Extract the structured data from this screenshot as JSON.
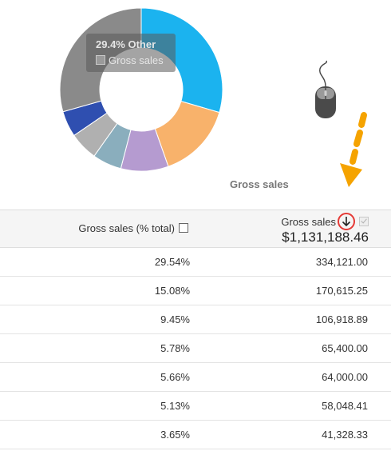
{
  "chart": {
    "label": "Gross sales",
    "tooltip": {
      "title": "29.4% Other",
      "series_label": "Gross sales"
    }
  },
  "chart_data": {
    "type": "pie",
    "donut": true,
    "title": "Gross sales",
    "slices": [
      {
        "value": 29.54,
        "color": "#1bb3ef"
      },
      {
        "value": 15.08,
        "color": "#f8b26b"
      },
      {
        "value": 9.45,
        "color": "#b59bd0"
      },
      {
        "value": 5.78,
        "color": "#8aaebd"
      },
      {
        "value": 5.66,
        "color": "#b0b0b0"
      },
      {
        "value": 5.13,
        "color": "#2f4fb0"
      },
      {
        "value": 29.4,
        "label": "29.4% Other",
        "color": "#8a8a8a"
      }
    ]
  },
  "table": {
    "col1_header": "Gross sales (% total)",
    "col2_header": "Gross sales",
    "col2_total": "$1,131,188.46",
    "rows": [
      {
        "pct": "29.54%",
        "value": "334,121.00"
      },
      {
        "pct": "15.08%",
        "value": "170,615.25"
      },
      {
        "pct": "9.45%",
        "value": "106,918.89"
      },
      {
        "pct": "5.78%",
        "value": "65,400.00"
      },
      {
        "pct": "5.66%",
        "value": "64,000.00"
      },
      {
        "pct": "5.13%",
        "value": "58,048.41"
      },
      {
        "pct": "3.65%",
        "value": "41,328.33"
      }
    ]
  },
  "icons": {
    "mouse": "mouse-icon",
    "hint_arrow": "hint-arrow-icon",
    "sort": "arrow-down-icon"
  },
  "colors": {
    "accent_blue": "#1bb3ef",
    "hint_arrow": "#f5a300",
    "sort_highlight": "#e53935"
  }
}
